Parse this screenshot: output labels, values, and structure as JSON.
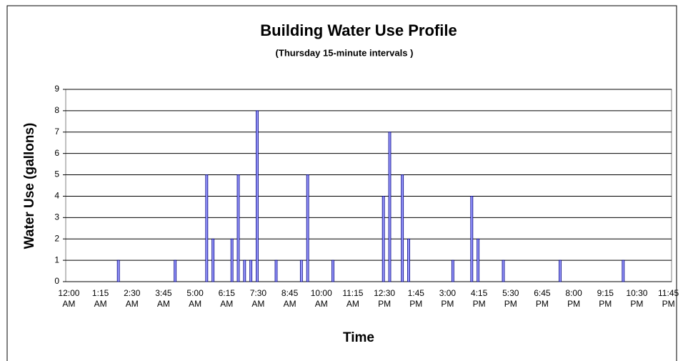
{
  "chart_data": {
    "type": "bar",
    "title": "Building Water Use Profile",
    "subtitle": "(Thursday 15-minute intervals )",
    "y_label": "Water Use (gallons)",
    "x_label": "Time",
    "categories": [
      "12:00 AM",
      null,
      null,
      null,
      null,
      "1:15 AM",
      null,
      null,
      null,
      null,
      "2:30 AM",
      null,
      null,
      null,
      null,
      "3:45 AM",
      null,
      null,
      null,
      null,
      "5:00 AM",
      null,
      null,
      null,
      null,
      "6:15 AM",
      null,
      null,
      null,
      null,
      "7:30 AM",
      null,
      null,
      null,
      null,
      "8:45 AM",
      null,
      null,
      null,
      null,
      "10:00 AM",
      null,
      null,
      null,
      null,
      "11:15 AM",
      null,
      null,
      null,
      null,
      "12:30 PM",
      null,
      null,
      null,
      null,
      "1:45 PM",
      null,
      null,
      null,
      null,
      "3:00 PM",
      null,
      null,
      null,
      null,
      "4:15 PM",
      null,
      null,
      null,
      null,
      "5:30 PM",
      null,
      null,
      null,
      null,
      "6:45 PM",
      null,
      null,
      null,
      null,
      "8:00 PM",
      null,
      null,
      null,
      null,
      "9:15 PM",
      null,
      null,
      null,
      null,
      "10:30 PM",
      null,
      null,
      null,
      null,
      "11:45 PM"
    ],
    "values": [
      0,
      0,
      0,
      0,
      0,
      0,
      0,
      0,
      1,
      0,
      0,
      0,
      0,
      0,
      0,
      0,
      0,
      1,
      0,
      0,
      0,
      0,
      5,
      2,
      0,
      0,
      2,
      5,
      1,
      1,
      8,
      0,
      0,
      1,
      0,
      0,
      0,
      1,
      5,
      0,
      0,
      0,
      1,
      0,
      0,
      0,
      0,
      0,
      0,
      0,
      4,
      7,
      0,
      5,
      2,
      0,
      0,
      0,
      0,
      0,
      0,
      1,
      0,
      0,
      4,
      2,
      0,
      0,
      0,
      1,
      0,
      0,
      0,
      0,
      0,
      0,
      0,
      0,
      1,
      0,
      0,
      0,
      0,
      0,
      0,
      0,
      0,
      0,
      1,
      0,
      0,
      0,
      0,
      0,
      0,
      0
    ],
    "color": "#9999ff",
    "ylim": [
      0,
      9
    ],
    "yticks": [
      0,
      1,
      2,
      3,
      4,
      5,
      6,
      7,
      8,
      9
    ],
    "grid": true
  }
}
